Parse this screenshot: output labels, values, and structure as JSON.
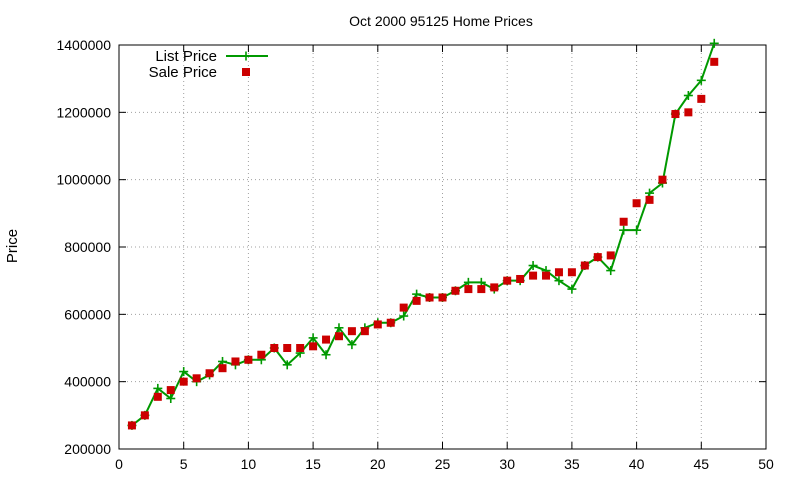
{
  "chart_data": {
    "type": "line",
    "title": "Oct 2000 95125 Home Prices",
    "xlabel": "",
    "ylabel": "Price",
    "xlim": [
      0,
      50
    ],
    "ylim": [
      200000,
      1400000
    ],
    "x_ticks": [
      0,
      5,
      10,
      15,
      20,
      25,
      30,
      35,
      40,
      45,
      50
    ],
    "y_ticks": [
      200000,
      400000,
      600000,
      800000,
      1000000,
      1200000,
      1400000
    ],
    "grid": true,
    "legend_position": "top-left",
    "series": [
      {
        "name": "List Price",
        "style": "line-plus",
        "color": "#009900",
        "x": [
          1,
          2,
          3,
          4,
          5,
          6,
          7,
          8,
          9,
          10,
          11,
          12,
          13,
          14,
          15,
          16,
          17,
          18,
          19,
          20,
          21,
          22,
          23,
          24,
          25,
          26,
          27,
          28,
          29,
          30,
          31,
          32,
          33,
          34,
          35,
          36,
          37,
          38,
          39,
          40,
          41,
          42,
          43,
          44,
          45,
          46
        ],
        "y": [
          270000,
          300000,
          380000,
          350000,
          430000,
          400000,
          420000,
          460000,
          450000,
          465000,
          465000,
          500000,
          450000,
          485000,
          530000,
          480000,
          560000,
          510000,
          560000,
          575000,
          575000,
          595000,
          660000,
          650000,
          650000,
          670000,
          695000,
          695000,
          675000,
          700000,
          700000,
          745000,
          730000,
          700000,
          675000,
          745000,
          770000,
          730000,
          850000,
          850000,
          960000,
          990000,
          1195000,
          1250000,
          1295000,
          1405000
        ]
      },
      {
        "name": "Sale Price",
        "style": "square",
        "color": "#cc0000",
        "x": [
          1,
          2,
          3,
          4,
          5,
          6,
          7,
          8,
          9,
          10,
          11,
          12,
          13,
          14,
          15,
          16,
          17,
          18,
          19,
          20,
          21,
          22,
          23,
          24,
          25,
          26,
          27,
          28,
          29,
          30,
          31,
          32,
          33,
          34,
          35,
          36,
          37,
          38,
          39,
          40,
          41,
          42,
          43,
          44,
          45,
          46
        ],
        "y": [
          270000,
          300000,
          355000,
          375000,
          400000,
          410000,
          425000,
          440000,
          460000,
          465000,
          480000,
          500000,
          500000,
          500000,
          505000,
          525000,
          535000,
          550000,
          550000,
          570000,
          575000,
          620000,
          640000,
          650000,
          650000,
          670000,
          675000,
          675000,
          680000,
          700000,
          705000,
          715000,
          715000,
          725000,
          725000,
          745000,
          770000,
          775000,
          875000,
          930000,
          940000,
          1000000,
          1195000,
          1200000,
          1240000,
          1350000
        ]
      }
    ]
  }
}
